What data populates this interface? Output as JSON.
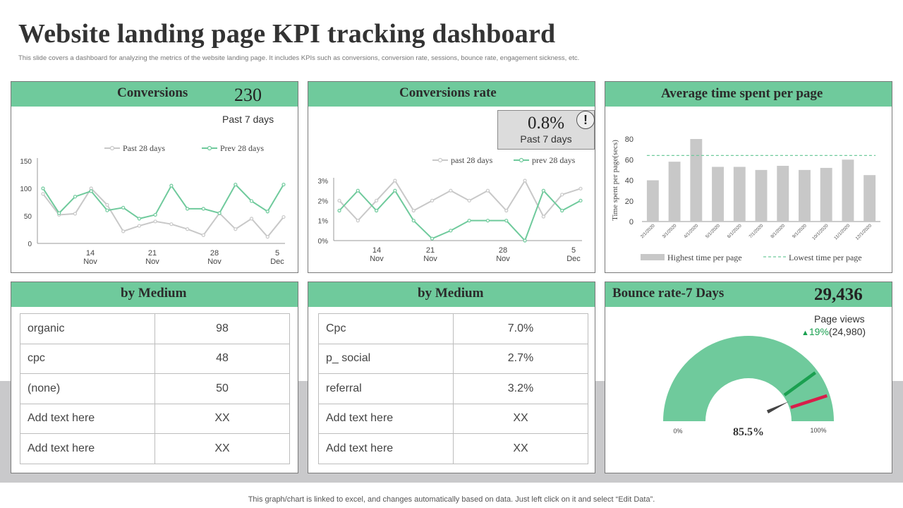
{
  "page": {
    "title": "Website landing page KPI tracking dashboard",
    "subtitle": "This slide covers a dashboard for analyzing the metrics of the website landing page. It includes KPIs  such as conversions, conversion rate, sessions, bounce rate, engagement sickness, etc.",
    "footer": "This graph/chart is linked to excel,  and changes automatically based on data. Just left click on it and select “Edit Data”."
  },
  "conversions": {
    "title": "Conversions",
    "value": "230",
    "period": "Past 7 days"
  },
  "conversion_rate": {
    "title": "Conversions rate",
    "value": "0.8%",
    "period": "Past 7 days",
    "alert_icon": "exclamation-icon"
  },
  "avg_time": {
    "title": "Average time spent per page"
  },
  "medium_left": {
    "title": "by Medium",
    "rows": [
      {
        "label": "organic",
        "value": "98"
      },
      {
        "label": "cpc",
        "value": "48"
      },
      {
        "label": "(none)",
        "value": "50"
      },
      {
        "label": "Add text here",
        "value": "XX"
      },
      {
        "label": "Add text here",
        "value": "XX"
      }
    ]
  },
  "medium_right": {
    "title": "by Medium",
    "rows": [
      {
        "label": "Cpc",
        "value": "7.0%"
      },
      {
        "label": "p_ social",
        "value": "2.7%"
      },
      {
        "label": "referral",
        "value": "3.2%"
      },
      {
        "label": "Add text here",
        "value": "XX"
      },
      {
        "label": "Add text here",
        "value": "XX"
      }
    ]
  },
  "bounce": {
    "title": "Bounce rate-7 Days",
    "value": "29,436",
    "page_views_label": "Page views",
    "change": "19%",
    "change_prev": "(24,980)",
    "change_icon": "triangle-up-icon"
  },
  "colors": {
    "accent": "#6fca9c",
    "line_green": "#6fca9c",
    "line_gray": "#c8c8c8",
    "bar_gray": "#c8c8c8",
    "needle": "#444444",
    "marker_green": "#1aa050",
    "marker_red": "#d81e4a",
    "up_green": "#1aa050"
  },
  "chart_data": [
    {
      "type": "line",
      "title": "Conversions",
      "x_ticks": [
        [
          "14",
          "Nov"
        ],
        [
          "21",
          "Nov"
        ],
        [
          "28",
          "Nov"
        ],
        [
          "5",
          "Dec"
        ]
      ],
      "x_tick_index": [
        3,
        10,
        17,
        24
      ],
      "y_ticks": [
        "0",
        "50",
        "100",
        "150"
      ],
      "ylim": [
        0,
        150
      ],
      "legend_position": "top",
      "series": [
        {
          "name": "Past 28 days",
          "color": "#c8c8c8",
          "values": [
            90,
            52,
            54,
            100,
            70,
            22,
            32,
            40,
            35,
            26,
            15,
            55,
            26,
            45,
            12,
            48
          ]
        },
        {
          "name": "Prev 28 days",
          "color": "#6fca9c",
          "values": [
            100,
            55,
            85,
            95,
            60,
            65,
            45,
            52,
            105,
            63,
            63,
            55,
            107,
            77,
            58,
            107
          ]
        }
      ],
      "series_x_index": [
        [
          0,
          2,
          4,
          6,
          8,
          10,
          12,
          14,
          16,
          18,
          20,
          22,
          24,
          25,
          26,
          27
        ]
      ]
    },
    {
      "type": "line",
      "title": "Conversions rate",
      "x_ticks": [
        [
          "14",
          "Nov"
        ],
        [
          "21",
          "Nov"
        ],
        [
          "28",
          "Nov"
        ],
        [
          "5",
          "Dec"
        ]
      ],
      "y_ticks": [
        "0%",
        "1%",
        "2%",
        "3%"
      ],
      "ylim": [
        0,
        3
      ],
      "legend_position": "top",
      "series": [
        {
          "name": "past 28 days",
          "color": "#c8c8c8",
          "values": [
            2.0,
            1.0,
            2.0,
            3.0,
            1.5,
            2.0,
            2.5,
            2.0,
            2.5,
            1.5,
            3.0,
            1.2,
            2.3,
            2.6
          ]
        },
        {
          "name": "prev 28 days",
          "color": "#6fca9c",
          "values": [
            1.5,
            2.5,
            1.5,
            2.5,
            1.0,
            0.1,
            0.5,
            1.0,
            1.0,
            1.0,
            0.0,
            2.5,
            1.5,
            2.0
          ]
        }
      ]
    },
    {
      "type": "bar",
      "title": "Average time spent per page",
      "ylabel": "Time spent per page(secs)",
      "ylim": [
        0,
        80
      ],
      "y_ticks": [
        "0",
        "20",
        "40",
        "60",
        "80"
      ],
      "categories": [
        "2/1/2020",
        "3/1/2020",
        "4/1/2020",
        "5/1/2020",
        "6/1/2020",
        "7/1/2020",
        "8/1/2020",
        "9/1/2020",
        "10/1/2020",
        "11/1/2020",
        "12/1/2020"
      ],
      "series": [
        {
          "name": "Highest time per page",
          "color": "#c8c8c8",
          "values": [
            40,
            58,
            80,
            53,
            53,
            50,
            54,
            50,
            52,
            60,
            45
          ]
        },
        {
          "name": "Lowest time per page",
          "color": "#6fca9c",
          "values": [
            64,
            64,
            64,
            64,
            64,
            64,
            64,
            64,
            64,
            64,
            64
          ]
        }
      ],
      "legend_position": "bottom"
    },
    {
      "type": "gauge",
      "title": "Bounce rate-7 Days",
      "value_label": "85.5%",
      "value": 85.5,
      "min_label": "0%",
      "max_label": "100%",
      "markers": [
        {
          "value": 80,
          "color": "#1aa050"
        },
        {
          "value": 90,
          "color": "#d81e4a"
        }
      ]
    }
  ]
}
